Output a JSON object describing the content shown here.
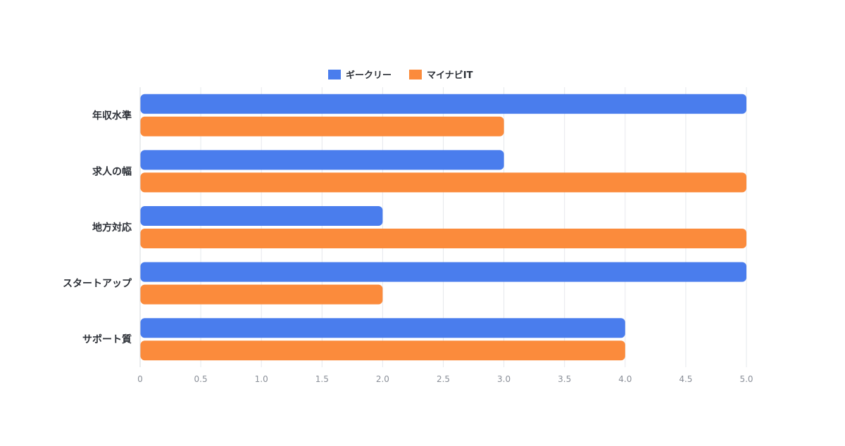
{
  "chart_data": {
    "type": "bar",
    "orientation": "horizontal",
    "categories": [
      "年収水準",
      "求人の幅",
      "地方対応",
      "スタートアップ",
      "サポート質"
    ],
    "series": [
      {
        "name": "ギークリー",
        "color": "#4a7ded",
        "values": [
          5,
          3,
          2,
          5,
          4
        ]
      },
      {
        "name": "マイナビIT",
        "color": "#fb8b3c",
        "values": [
          3,
          5,
          5,
          2,
          4
        ]
      }
    ],
    "x_ticks": [
      "0",
      "0.5",
      "1.0",
      "1.5",
      "2.0",
      "2.5",
      "3.0",
      "3.5",
      "4.0",
      "4.5",
      "5.0"
    ],
    "xlim": [
      0,
      5
    ],
    "title": "",
    "xlabel": "",
    "ylabel": "",
    "grid": "vertical",
    "legend": "top-center"
  }
}
